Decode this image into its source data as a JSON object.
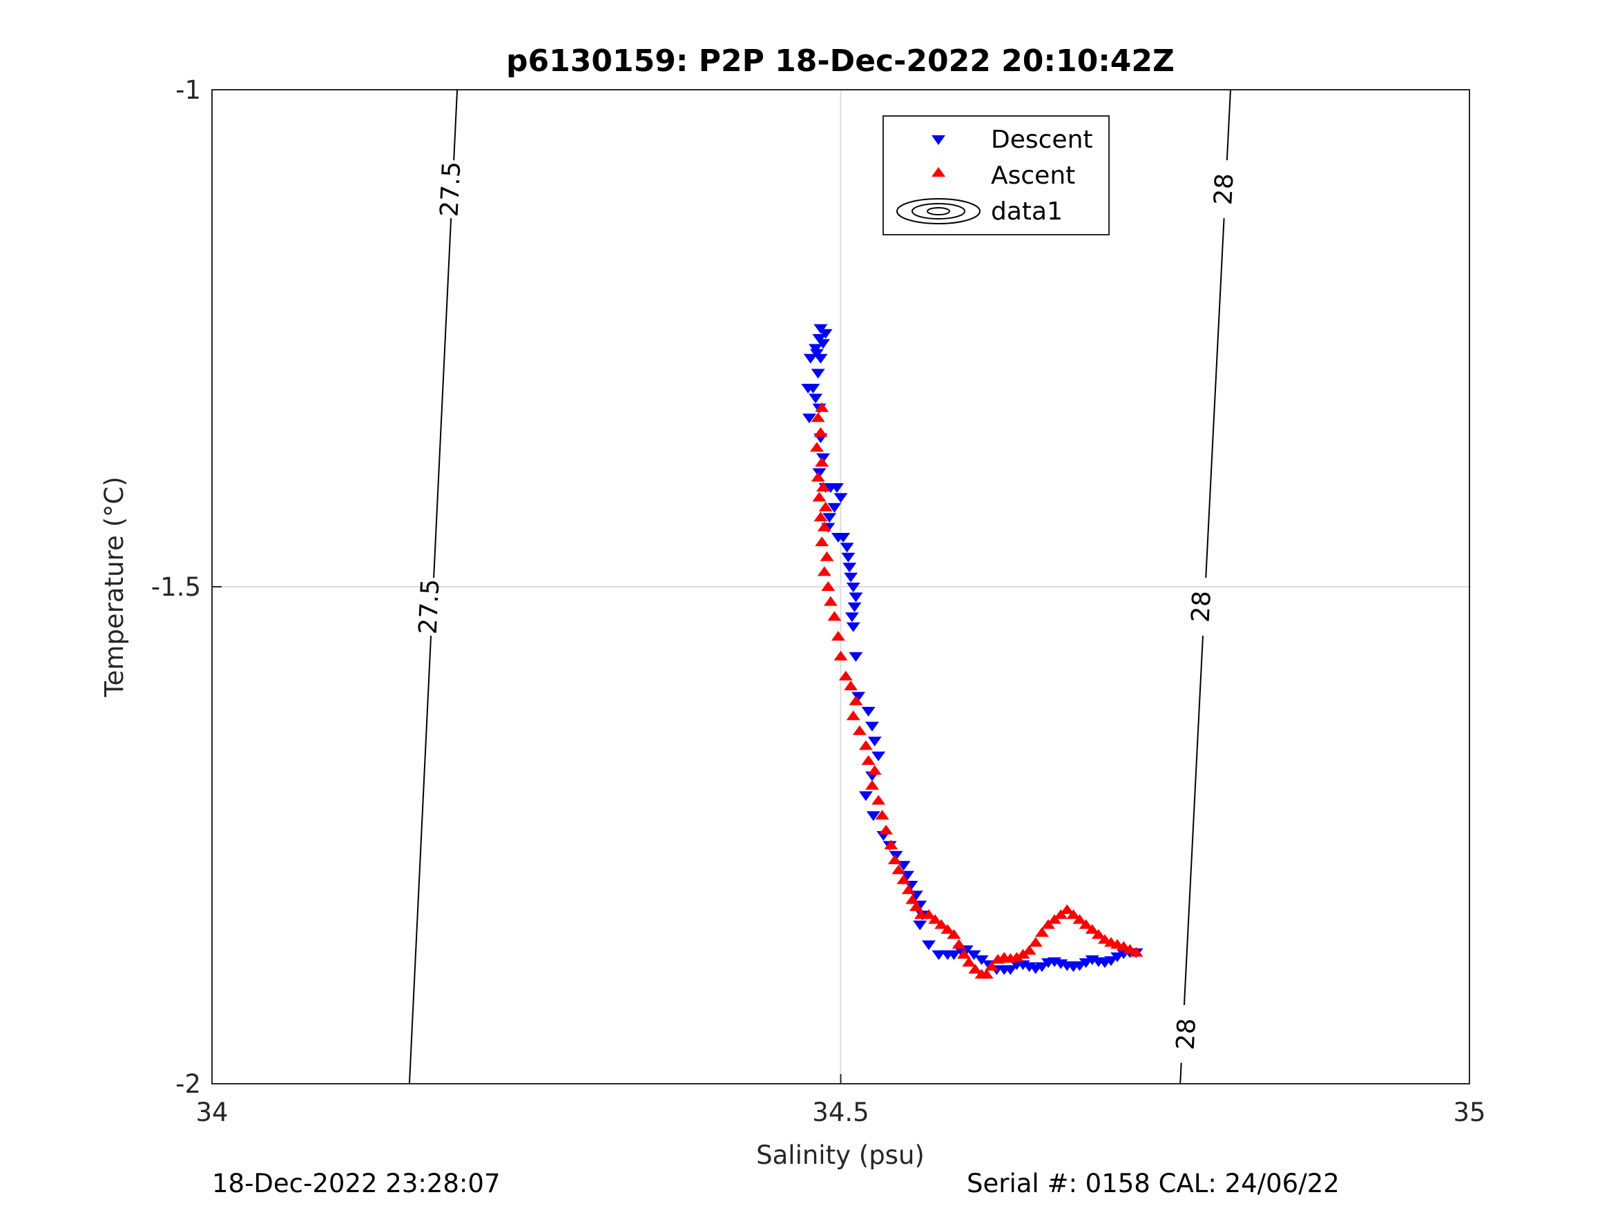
{
  "chart_data": {
    "type": "scatter",
    "title": "p6130159: P2P 18-Dec-2022 20:10:42Z",
    "xlabel": "Salinity (psu)",
    "ylabel": "Temperature (°C)",
    "xlim": [
      34,
      35
    ],
    "ylim": [
      -2,
      -1
    ],
    "xticks": [
      34,
      34.5,
      35
    ],
    "xtick_labels": [
      "34",
      "34.5",
      "35"
    ],
    "yticks": [
      -2,
      -1.5,
      -1
    ],
    "ytick_labels": [
      "-2",
      "-1.5",
      "-1"
    ],
    "grid": true,
    "legend_position": "top-center",
    "legend": {
      "descent": "Descent",
      "ascent": "Ascent",
      "contour": "data1"
    },
    "colors": {
      "descent": "#0000ff",
      "ascent": "#ff0000",
      "contour": "#000000",
      "grid": "#dcdcdc"
    },
    "series": [
      {
        "name": "Descent",
        "marker": "triangle-down",
        "points": [
          [
            34.484,
            -1.24
          ],
          [
            34.488,
            -1.245
          ],
          [
            34.483,
            -1.25
          ],
          [
            34.486,
            -1.255
          ],
          [
            34.48,
            -1.26
          ],
          [
            34.481,
            -1.265
          ],
          [
            34.476,
            -1.27
          ],
          [
            34.484,
            -1.27
          ],
          [
            34.482,
            -1.285
          ],
          [
            34.478,
            -1.3
          ],
          [
            34.474,
            -1.3
          ],
          [
            34.48,
            -1.31
          ],
          [
            34.483,
            -1.32
          ],
          [
            34.475,
            -1.33
          ],
          [
            34.484,
            -1.35
          ],
          [
            34.486,
            -1.37
          ],
          [
            34.483,
            -1.385
          ],
          [
            34.488,
            -1.4
          ],
          [
            34.492,
            -1.4
          ],
          [
            34.497,
            -1.4
          ],
          [
            34.5,
            -1.41
          ],
          [
            34.495,
            -1.42
          ],
          [
            34.491,
            -1.43
          ],
          [
            34.49,
            -1.44
          ],
          [
            34.498,
            -1.45
          ],
          [
            34.502,
            -1.45
          ],
          [
            34.505,
            -1.46
          ],
          [
            34.506,
            -1.47
          ],
          [
            34.507,
            -1.48
          ],
          [
            34.508,
            -1.49
          ],
          [
            34.51,
            -1.5
          ],
          [
            34.512,
            -1.51
          ],
          [
            34.511,
            -1.52
          ],
          [
            34.509,
            -1.53
          ],
          [
            34.51,
            -1.54
          ],
          [
            34.512,
            -1.57
          ],
          [
            34.514,
            -1.61
          ],
          [
            34.522,
            -1.625
          ],
          [
            34.525,
            -1.64
          ],
          [
            34.527,
            -1.655
          ],
          [
            34.53,
            -1.67
          ],
          [
            34.525,
            -1.69
          ],
          [
            34.52,
            -1.71
          ],
          [
            34.526,
            -1.73
          ],
          [
            34.534,
            -1.75
          ],
          [
            34.539,
            -1.76
          ],
          [
            34.544,
            -1.77
          ],
          [
            34.55,
            -1.78
          ],
          [
            34.553,
            -1.79
          ],
          [
            34.556,
            -1.8
          ],
          [
            34.56,
            -1.81
          ],
          [
            34.563,
            -1.82
          ],
          [
            34.565,
            -1.83
          ],
          [
            34.563,
            -1.84
          ],
          [
            34.57,
            -1.86
          ],
          [
            34.578,
            -1.87
          ],
          [
            34.585,
            -1.87
          ],
          [
            34.59,
            -1.87
          ],
          [
            34.595,
            -1.865
          ],
          [
            34.6,
            -1.865
          ],
          [
            34.606,
            -1.87
          ],
          [
            34.612,
            -1.875
          ],
          [
            34.618,
            -1.88
          ],
          [
            34.624,
            -1.885
          ],
          [
            34.63,
            -1.885
          ],
          [
            34.635,
            -1.885
          ],
          [
            34.64,
            -1.88
          ],
          [
            34.645,
            -1.88
          ],
          [
            34.65,
            -1.882
          ],
          [
            34.655,
            -1.884
          ],
          [
            34.66,
            -1.882
          ],
          [
            34.665,
            -1.878
          ],
          [
            34.67,
            -1.877
          ],
          [
            34.675,
            -1.879
          ],
          [
            34.68,
            -1.881
          ],
          [
            34.685,
            -1.882
          ],
          [
            34.69,
            -1.881
          ],
          [
            34.695,
            -1.878
          ],
          [
            34.7,
            -1.875
          ],
          [
            34.705,
            -1.877
          ],
          [
            34.71,
            -1.878
          ],
          [
            34.715,
            -1.876
          ],
          [
            34.72,
            -1.872
          ],
          [
            34.725,
            -1.869
          ],
          [
            34.73,
            -1.868
          ],
          [
            34.735,
            -1.868
          ]
        ]
      },
      {
        "name": "Ascent",
        "marker": "triangle-up",
        "points": [
          [
            34.485,
            -1.32
          ],
          [
            34.482,
            -1.33
          ],
          [
            34.484,
            -1.345
          ],
          [
            34.481,
            -1.36
          ],
          [
            34.485,
            -1.375
          ],
          [
            34.482,
            -1.39
          ],
          [
            34.486,
            -1.4
          ],
          [
            34.483,
            -1.41
          ],
          [
            34.488,
            -1.42
          ],
          [
            34.484,
            -1.43
          ],
          [
            34.487,
            -1.44
          ],
          [
            34.485,
            -1.455
          ],
          [
            34.489,
            -1.47
          ],
          [
            34.487,
            -1.485
          ],
          [
            34.49,
            -1.5
          ],
          [
            34.492,
            -1.515
          ],
          [
            34.495,
            -1.53
          ],
          [
            34.498,
            -1.55
          ],
          [
            34.5,
            -1.57
          ],
          [
            34.504,
            -1.59
          ],
          [
            34.508,
            -1.6
          ],
          [
            34.512,
            -1.615
          ],
          [
            34.51,
            -1.63
          ],
          [
            34.515,
            -1.645
          ],
          [
            34.52,
            -1.66
          ],
          [
            34.522,
            -1.675
          ],
          [
            34.527,
            -1.685
          ],
          [
            34.525,
            -1.7
          ],
          [
            34.53,
            -1.715
          ],
          [
            34.533,
            -1.73
          ],
          [
            34.536,
            -1.745
          ],
          [
            34.54,
            -1.76
          ],
          [
            34.543,
            -1.775
          ],
          [
            34.546,
            -1.785
          ],
          [
            34.55,
            -1.795
          ],
          [
            34.554,
            -1.805
          ],
          [
            34.557,
            -1.815
          ],
          [
            34.56,
            -1.822
          ],
          [
            34.564,
            -1.83
          ],
          [
            34.57,
            -1.83
          ],
          [
            34.575,
            -1.835
          ],
          [
            34.58,
            -1.84
          ],
          [
            34.585,
            -1.845
          ],
          [
            34.59,
            -1.85
          ],
          [
            34.594,
            -1.86
          ],
          [
            34.598,
            -1.87
          ],
          [
            34.602,
            -1.878
          ],
          [
            34.607,
            -1.885
          ],
          [
            34.612,
            -1.89
          ],
          [
            34.616,
            -1.89
          ],
          [
            34.62,
            -1.882
          ],
          [
            34.625,
            -1.875
          ],
          [
            34.63,
            -1.873
          ],
          [
            34.635,
            -1.874
          ],
          [
            34.64,
            -1.873
          ],
          [
            34.645,
            -1.87
          ],
          [
            34.65,
            -1.866
          ],
          [
            34.655,
            -1.858
          ],
          [
            34.66,
            -1.848
          ],
          [
            34.665,
            -1.84
          ],
          [
            34.67,
            -1.835
          ],
          [
            34.675,
            -1.83
          ],
          [
            34.68,
            -1.825
          ],
          [
            34.685,
            -1.83
          ],
          [
            34.69,
            -1.835
          ],
          [
            34.695,
            -1.84
          ],
          [
            34.7,
            -1.845
          ],
          [
            34.705,
            -1.85
          ],
          [
            34.71,
            -1.855
          ],
          [
            34.715,
            -1.858
          ],
          [
            34.72,
            -1.86
          ],
          [
            34.725,
            -1.862
          ],
          [
            34.73,
            -1.865
          ],
          [
            34.735,
            -1.868
          ]
        ]
      }
    ],
    "contours": [
      {
        "label": "27.5",
        "points": [
          [
            34.195,
            -1.0
          ],
          [
            34.157,
            -2.0
          ]
        ],
        "label_positions": [
          [
            34.19,
            -1.1
          ],
          [
            34.173,
            -1.52
          ]
        ]
      },
      {
        "label": "28",
        "points": [
          [
            34.81,
            -1.0
          ],
          [
            34.77,
            -2.0
          ]
        ],
        "label_positions": [
          [
            34.805,
            -1.1
          ],
          [
            34.787,
            -1.52
          ],
          [
            34.775,
            -1.95
          ]
        ]
      }
    ]
  },
  "footer": {
    "left": "18-Dec-2022 23:28:07",
    "right": "Serial #: 0158  CAL: 24/06/22"
  }
}
